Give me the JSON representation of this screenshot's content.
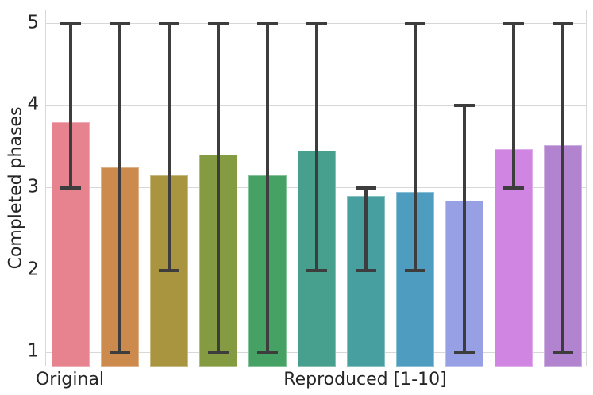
{
  "chart_data": {
    "type": "bar",
    "title": "",
    "xlabel": "",
    "ylabel": "Completed phases",
    "ylim": [
      0.82,
      5.16
    ],
    "yticks": [
      1,
      2,
      3,
      4,
      5
    ],
    "grid": "horizontal-only",
    "legend": "none",
    "error_bars": "min-max whiskers with caps",
    "x_tick_labels": [
      {
        "text": "Original",
        "slot": 0
      },
      {
        "text": "Reproduced [1-10]",
        "slot": 6
      }
    ],
    "bars": [
      {
        "name": "Original",
        "value": 3.8,
        "err_low": 3,
        "err_high": 5,
        "color": "#e6838e"
      },
      {
        "name": "Reproduced 1",
        "value": 3.25,
        "err_low": 1,
        "err_high": 5,
        "color": "#cc8a4d"
      },
      {
        "name": "Reproduced 2",
        "value": 3.15,
        "err_low": 2,
        "err_high": 5,
        "color": "#a99440"
      },
      {
        "name": "Reproduced 3",
        "value": 3.4,
        "err_low": 1,
        "err_high": 5,
        "color": "#849b41"
      },
      {
        "name": "Reproduced 4",
        "value": 3.15,
        "err_low": 1,
        "err_high": 5,
        "color": "#45a164"
      },
      {
        "name": "Reproduced 5",
        "value": 3.45,
        "err_low": 2,
        "err_high": 5,
        "color": "#47a08d"
      },
      {
        "name": "Reproduced 6",
        "value": 2.9,
        "err_low": 2,
        "err_high": 3,
        "color": "#479fa0"
      },
      {
        "name": "Reproduced 7",
        "value": 2.95,
        "err_low": 2,
        "err_high": 5,
        "color": "#4e9dc0"
      },
      {
        "name": "Reproduced 8",
        "value": 2.85,
        "err_low": 1,
        "err_high": 4,
        "color": "#98a0e5"
      },
      {
        "name": "Reproduced 9",
        "value": 3.47,
        "err_low": 3,
        "err_high": 5,
        "color": "#cf85e1"
      },
      {
        "name": "Reproduced 10",
        "value": 3.52,
        "err_low": 1,
        "err_high": 5,
        "color": "#b284d0"
      }
    ],
    "colors": {
      "error_bar": "#3d3d3d",
      "grid": "#d7d7d7",
      "spine": "#d9d9d9",
      "text": "#262626",
      "background": "#ffffff"
    }
  }
}
